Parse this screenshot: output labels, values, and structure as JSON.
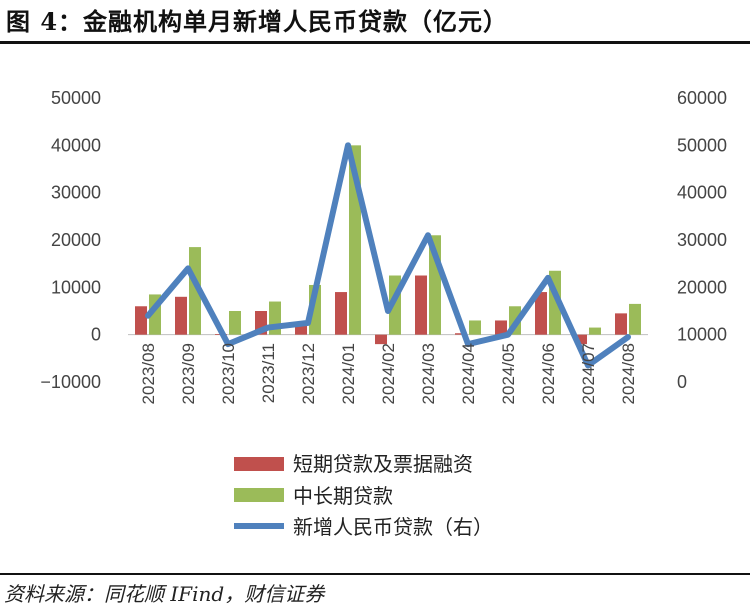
{
  "figure": {
    "title": "图 4：金融机构单月新增人民币贷款（亿元）",
    "source": "资料来源：同花顺 IFind，财信证券"
  },
  "colors": {
    "short_term": "#C0504D",
    "long_term": "#9BBB59",
    "total": "#4F81BD"
  },
  "chart_data": {
    "type": "bar",
    "categories": [
      "2023/08",
      "2023/09",
      "2023/10",
      "2023/11",
      "2023/12",
      "2024/01",
      "2024/02",
      "2024/03",
      "2024/04",
      "2024/05",
      "2024/06",
      "2024/07",
      "2024/08"
    ],
    "series": [
      {
        "name": "短期贷款及票据融资",
        "type": "bar",
        "axis": "left",
        "values": [
          6000,
          8000,
          100,
          5000,
          2000,
          9000,
          -2000,
          12500,
          300,
          3000,
          9000,
          -2000,
          4500
        ]
      },
      {
        "name": "中长期贷款",
        "type": "bar",
        "axis": "left",
        "values": [
          8500,
          18500,
          5000,
          7000,
          10500,
          40000,
          12500,
          21000,
          3000,
          6000,
          13500,
          1500,
          6500
        ]
      },
      {
        "name": "新增人民币贷款（右）",
        "type": "line",
        "axis": "right",
        "values": [
          14000,
          24000,
          8000,
          11500,
          12500,
          50000,
          15000,
          31000,
          8000,
          10000,
          22000,
          3500,
          9500
        ]
      }
    ],
    "y_left": {
      "ticks": [
        "50000",
        "40000",
        "30000",
        "20000",
        "10000",
        "0",
        "−10000"
      ],
      "ylim": [
        -10000,
        50000
      ]
    },
    "y_right": {
      "ticks": [
        "60000",
        "50000",
        "40000",
        "30000",
        "20000",
        "10000",
        "0"
      ],
      "ylim": [
        0,
        60000
      ]
    },
    "grid": false,
    "legend_position": "bottom"
  }
}
